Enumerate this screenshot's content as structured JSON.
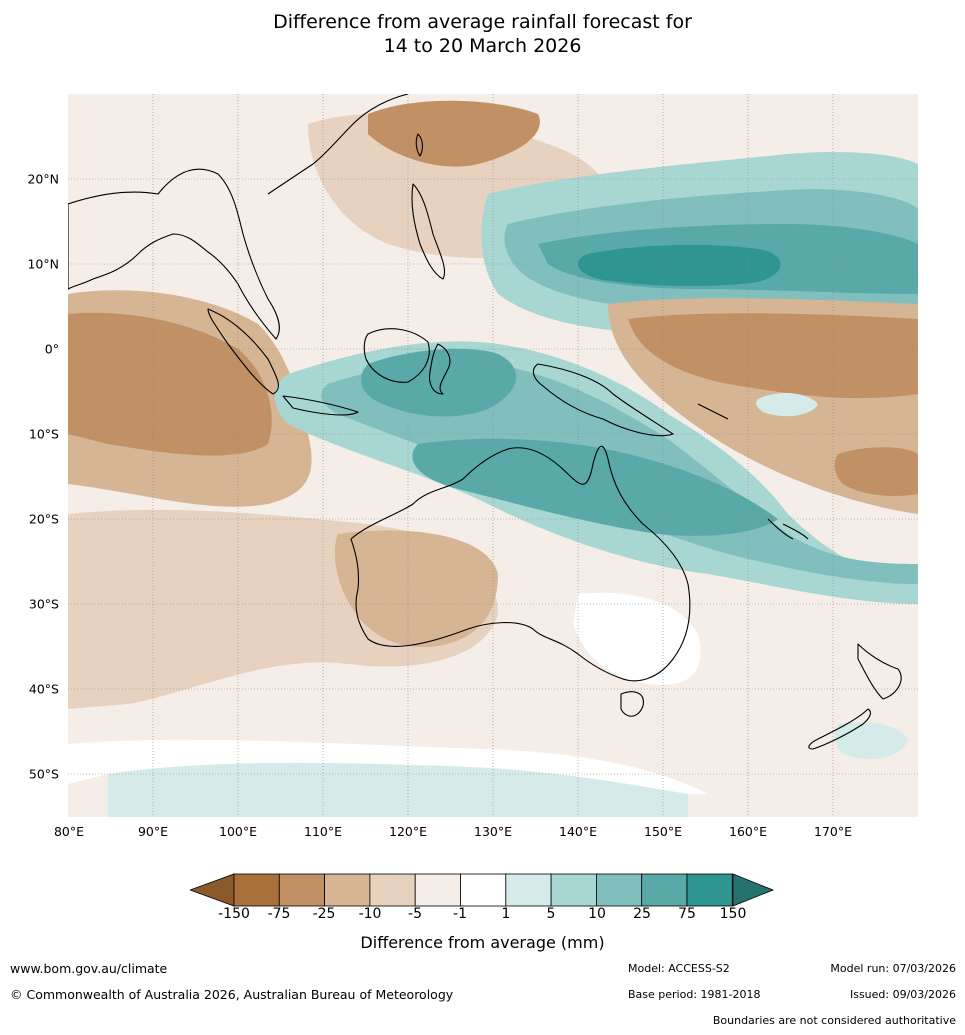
{
  "title_line1": "Difference from average rainfall forecast for",
  "title_line2": "14 to 20 March 2026",
  "map": {
    "lat_labels": [
      "20°N",
      "10°N",
      "0°",
      "10°S",
      "20°S",
      "30°S",
      "40°S",
      "50°S"
    ],
    "lon_labels": [
      "80°E",
      "90°E",
      "100°E",
      "110°E",
      "120°E",
      "130°E",
      "140°E",
      "150°E",
      "160°E",
      "170°E"
    ],
    "lon_range": [
      80,
      180
    ],
    "lat_range": [
      -55,
      30
    ]
  },
  "legend": {
    "title": "Difference from average (mm)",
    "tick_labels": [
      "-150",
      "-75",
      "-25",
      "-10",
      "-5",
      "-1",
      "1",
      "5",
      "10",
      "25",
      "75",
      "150"
    ],
    "colors": [
      "#8b5a2b",
      "#a9703c",
      "#c19165",
      "#d5b593",
      "#e6d2bf",
      "#f5ede7",
      "#ffffff",
      "#d5ebe9",
      "#a8d6d3",
      "#80bfbd",
      "#58a9a7",
      "#2e9590",
      "#24736e"
    ]
  },
  "footer": {
    "website": "www.bom.gov.au/climate",
    "copyright": "© Commonwealth of Australia 2026, Australian Bureau of Meteorology",
    "model": "Model: ACCESS-S2",
    "base_period": "Base period: 1981-2018",
    "model_run": "Model run: 07/03/2026",
    "issued": "Issued: 09/03/2026",
    "disclaimer": "Boundaries are not considered authoritative"
  }
}
